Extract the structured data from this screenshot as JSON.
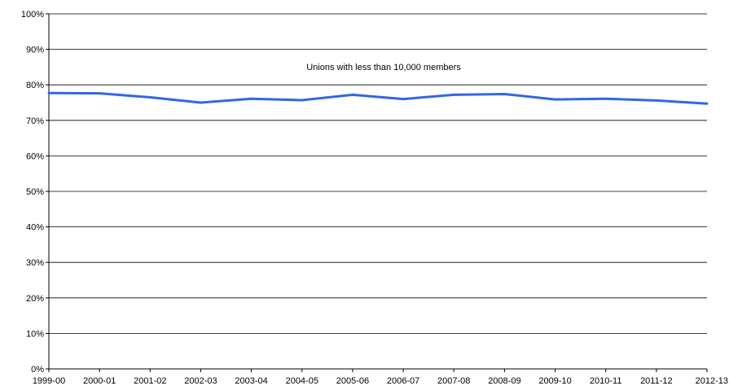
{
  "chart_data": {
    "type": "line",
    "title": "",
    "xlabel": "",
    "ylabel": "",
    "annotation": "Unions with less than 10,000 members",
    "categories": [
      "1999-00",
      "2000-01",
      "2001-02",
      "2002-03",
      "2003-04",
      "2004-05",
      "2005-06",
      "2006-07",
      "2007-08",
      "2008-09",
      "2009-10",
      "2010-11",
      "2011-12",
      "2012-13"
    ],
    "y_ticks": [
      "0%",
      "10%",
      "20%",
      "30%",
      "40%",
      "50%",
      "60%",
      "70%",
      "80%",
      "90%",
      "100%"
    ],
    "ylim": [
      0,
      100
    ],
    "grid": true,
    "legend": "none",
    "series": [
      {
        "values": [
          77.7,
          77.6,
          76.5,
          75.0,
          76.1,
          75.7,
          77.2,
          76.0,
          77.2,
          77.4,
          75.9,
          76.1,
          75.6,
          74.7
        ],
        "color": "#3366e6"
      }
    ]
  }
}
